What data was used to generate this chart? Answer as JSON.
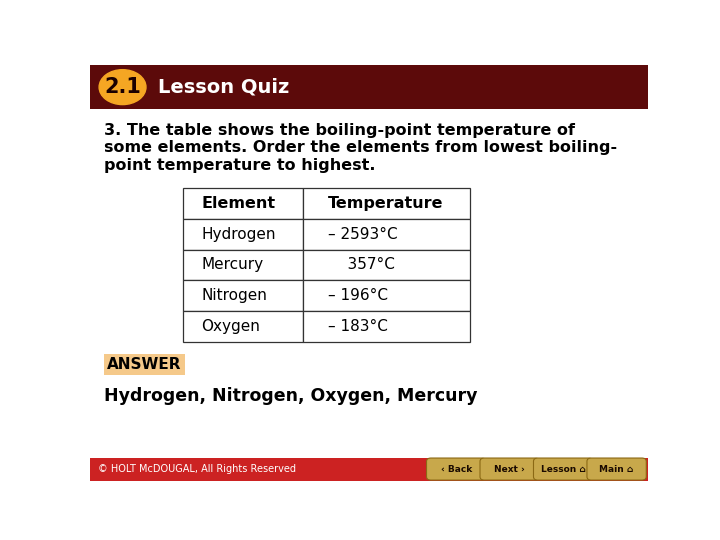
{
  "title_badge": "2.1",
  "title_text": "Lesson Quiz",
  "header_bg": "#5C0A0A",
  "header_text_color": "#FFFFFF",
  "badge_bg": "#F5A623",
  "badge_border": "#DAA000",
  "body_bg": "#FFFFFF",
  "question_text_line1": "3. The table shows the boiling-point temperature of",
  "question_text_line2": "some elements. Order the elements from lowest boiling-",
  "question_text_line3": "point temperature to highest.",
  "table_headers": [
    "Element",
    "Temperature"
  ],
  "table_rows": [
    [
      "Hydrogen",
      "– 2593°C"
    ],
    [
      "Mercury",
      "    357°C"
    ],
    [
      "Nitrogen",
      "– 196°C"
    ],
    [
      "Oxygen",
      "– 183°C"
    ]
  ],
  "answer_label": "ANSWER",
  "answer_bg": "#F5C98A",
  "answer_text": "Hydrogen, Nitrogen, Oxygen, Mercury",
  "footer_text": "© HOLT McDOUGAL, All Rights Reserved",
  "footer_bg": "#CC2222",
  "footer_text_color": "#FFFFFF",
  "nav_buttons": [
    "Back",
    "Next",
    "Lesson",
    "Main"
  ],
  "nav_bg": "#C8A84B",
  "nav_border": "#8B6914",
  "table_border_color": "#333333",
  "question_fontsize": 11.5,
  "answer_fontsize": 12.5,
  "table_fontsize": 11.0,
  "body_text_color": "#000000"
}
